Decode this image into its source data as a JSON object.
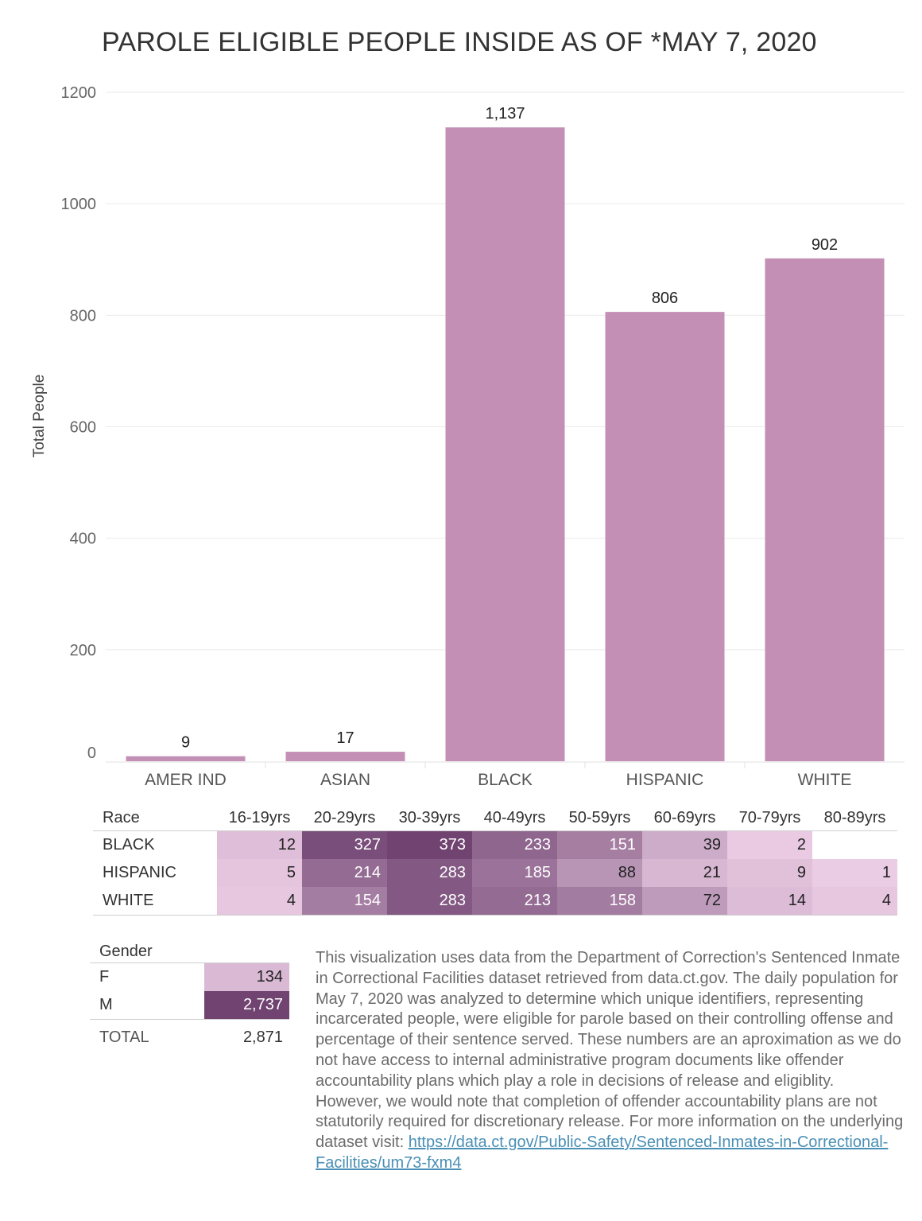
{
  "chart_data": {
    "type": "bar",
    "title": "PAROLE ELIGIBLE PEOPLE INSIDE AS OF *MAY 7, 2020",
    "xlabel": "",
    "ylabel": "Total People",
    "categories": [
      "AMER IND",
      "ASIAN",
      "BLACK",
      "HISPANIC",
      "WHITE"
    ],
    "values": [
      9,
      17,
      1137,
      806,
      902
    ],
    "value_labels": [
      "9",
      "17",
      "1,137",
      "806",
      "902"
    ],
    "yticks": [
      0,
      200,
      400,
      600,
      800,
      1000,
      1200
    ],
    "ylim": [
      0,
      1200
    ],
    "grid": true,
    "bar_color": "#c38fb5"
  },
  "age_table": {
    "header": "Race",
    "columns": [
      "16-19yrs",
      "20-29yrs",
      "30-39yrs",
      "40-49yrs",
      "50-59yrs",
      "60-69yrs",
      "70-79yrs",
      "80-89yrs"
    ],
    "rows": [
      {
        "race": "BLACK",
        "values": [
          "12",
          "327",
          "373",
          "233",
          "151",
          "39",
          "2",
          ""
        ]
      },
      {
        "race": "HISPANIC",
        "values": [
          "5",
          "214",
          "283",
          "185",
          "88",
          "21",
          "9",
          "1"
        ]
      },
      {
        "race": "WHITE",
        "values": [
          "4",
          "154",
          "283",
          "213",
          "158",
          "72",
          "14",
          "4"
        ]
      }
    ],
    "color_scale": {
      "low": "#eed0e7",
      "high": "#704371"
    }
  },
  "gender_table": {
    "header": "Gender",
    "rows": [
      {
        "label": "F",
        "value": "134",
        "num": 134
      },
      {
        "label": "M",
        "value": "2,737",
        "num": 2737
      }
    ],
    "total_label": "TOTAL",
    "total_value": "2,871"
  },
  "footnote": {
    "text": "This visualization uses data from the Department of Correction's Sentenced Inmate in Correctional Facilities dataset retrieved from data.ct.gov. The daily population for May 7, 2020 was analyzed to determine which unique identifiers, representing incarcerated people, were eligible for parole based on their controlling offense and percentage of their sentence served. These numbers are an aproximation as we do not have access to internal administrative program documents like offender accountability plans which play a role in decisions of release and eligiblity. However, we would note that completion of offender accountability plans are not statutorily required for discretionary release. For more information on the underlying dataset visit: ",
    "link_text": "https://data.ct.gov/Public-Safety/Sentenced-Inmates-in-Correctional-Facilities/um73-fxm4"
  }
}
